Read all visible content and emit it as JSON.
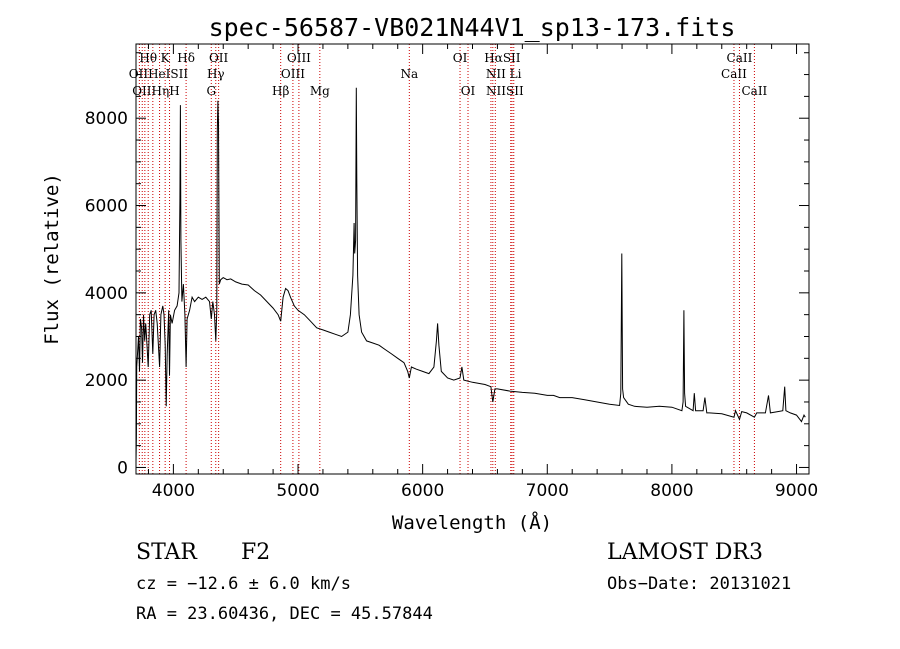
{
  "chart_data": {
    "type": "line",
    "title": "spec-56587-VB021N44V1_sp13-173.fits",
    "xlabel": "Wavelength (Å)",
    "ylabel": "Flux (relative)",
    "xlim": [
      3700,
      9100
    ],
    "ylim": [
      -150,
      9700
    ],
    "xticks": [
      4000,
      5000,
      6000,
      7000,
      8000,
      9000
    ],
    "yticks": [
      0,
      2000,
      4000,
      6000,
      8000
    ],
    "x_tick_labels": [
      "4000",
      "5000",
      "6000",
      "7000",
      "8000",
      "9000"
    ],
    "y_tick_labels": [
      "0",
      "2000",
      "4000",
      "6000",
      "8000"
    ],
    "line_color": "#000000",
    "marker_color": "#cc0000",
    "line_markers": [
      3727,
      3750,
      3771,
      3798,
      3835,
      3889,
      3934,
      3969,
      4102,
      4304,
      4340,
      4363,
      4861,
      4959,
      5007,
      5175,
      5893,
      6300,
      6364,
      6548,
      6563,
      6583,
      6707,
      6717,
      6731,
      8498,
      8542,
      8662
    ],
    "line_labels": [
      {
        "text": "Hθ",
        "wl": 3798,
        "row": 0
      },
      {
        "text": "K",
        "wl": 3934,
        "row": 0
      },
      {
        "text": "Hδ",
        "wl": 4102,
        "row": 0
      },
      {
        "text": "OII",
        "wl": 4363,
        "row": 0
      },
      {
        "text": "OIII",
        "wl": 5007,
        "row": 0
      },
      {
        "text": "OI",
        "wl": 6300,
        "row": 0
      },
      {
        "text": "HαSII",
        "wl": 6640,
        "row": 0
      },
      {
        "text": "CaII",
        "wl": 8542,
        "row": 0
      },
      {
        "text": "OIIHeISII",
        "wl": 3880,
        "row": 1
      },
      {
        "text": "Hγ",
        "wl": 4340,
        "row": 1
      },
      {
        "text": "OIII",
        "wl": 4959,
        "row": 1
      },
      {
        "text": "Na",
        "wl": 5893,
        "row": 1
      },
      {
        "text": "NII Li",
        "wl": 6650,
        "row": 1
      },
      {
        "text": "CaII",
        "wl": 8498,
        "row": 1
      },
      {
        "text": "OIIHηH",
        "wl": 3860,
        "row": 2
      },
      {
        "text": "G",
        "wl": 4304,
        "row": 2
      },
      {
        "text": "Hβ",
        "wl": 4861,
        "row": 2
      },
      {
        "text": "Mg",
        "wl": 5175,
        "row": 2
      },
      {
        "text": "OI",
        "wl": 6364,
        "row": 2
      },
      {
        "text": "NIISII",
        "wl": 6660,
        "row": 2
      },
      {
        "text": "CaII",
        "wl": 8662,
        "row": 2
      }
    ],
    "spectrum": [
      [
        3700,
        100
      ],
      [
        3703,
        700
      ],
      [
        3706,
        2300
      ],
      [
        3712,
        2600
      ],
      [
        3720,
        3000
      ],
      [
        3728,
        2200
      ],
      [
        3735,
        3400
      ],
      [
        3745,
        3200
      ],
      [
        3752,
        2400
      ],
      [
        3760,
        3500
      ],
      [
        3770,
        2900
      ],
      [
        3778,
        3300
      ],
      [
        3788,
        2800
      ],
      [
        3798,
        2300
      ],
      [
        3810,
        3500
      ],
      [
        3822,
        3600
      ],
      [
        3835,
        2600
      ],
      [
        3845,
        3500
      ],
      [
        3858,
        3600
      ],
      [
        3870,
        3300
      ],
      [
        3889,
        2300
      ],
      [
        3900,
        3500
      ],
      [
        3915,
        3700
      ],
      [
        3925,
        3500
      ],
      [
        3934,
        2800
      ],
      [
        3942,
        1400
      ],
      [
        3950,
        2600
      ],
      [
        3962,
        3600
      ],
      [
        3969,
        2100
      ],
      [
        3976,
        3500
      ],
      [
        3990,
        3300
      ],
      [
        4010,
        3600
      ],
      [
        4030,
        3700
      ],
      [
        4045,
        4000
      ],
      [
        4052,
        6100
      ],
      [
        4056,
        8300
      ],
      [
        4060,
        5200
      ],
      [
        4068,
        3800
      ],
      [
        4080,
        4200
      ],
      [
        4092,
        3500
      ],
      [
        4102,
        2300
      ],
      [
        4110,
        3400
      ],
      [
        4130,
        3600
      ],
      [
        4150,
        3900
      ],
      [
        4170,
        3800
      ],
      [
        4200,
        3900
      ],
      [
        4230,
        3850
      ],
      [
        4260,
        3900
      ],
      [
        4290,
        3800
      ],
      [
        4304,
        3400
      ],
      [
        4316,
        3800
      ],
      [
        4330,
        3500
      ],
      [
        4340,
        2900
      ],
      [
        4348,
        3600
      ],
      [
        4352,
        7700
      ],
      [
        4357,
        8400
      ],
      [
        4362,
        7900
      ],
      [
        4368,
        4200
      ],
      [
        4380,
        4300
      ],
      [
        4400,
        4350
      ],
      [
        4430,
        4300
      ],
      [
        4460,
        4320
      ],
      [
        4500,
        4250
      ],
      [
        4550,
        4200
      ],
      [
        4600,
        4180
      ],
      [
        4650,
        4050
      ],
      [
        4700,
        3950
      ],
      [
        4750,
        3800
      ],
      [
        4800,
        3650
      ],
      [
        4840,
        3500
      ],
      [
        4861,
        3350
      ],
      [
        4880,
        3900
      ],
      [
        4900,
        4100
      ],
      [
        4920,
        4050
      ],
      [
        4940,
        3900
      ],
      [
        4970,
        3700
      ],
      [
        5000,
        3600
      ],
      [
        5050,
        3500
      ],
      [
        5100,
        3350
      ],
      [
        5150,
        3200
      ],
      [
        5200,
        3150
      ],
      [
        5250,
        3100
      ],
      [
        5300,
        3050
      ],
      [
        5350,
        3000
      ],
      [
        5400,
        3100
      ],
      [
        5420,
        3500
      ],
      [
        5440,
        4400
      ],
      [
        5450,
        5600
      ],
      [
        5455,
        4900
      ],
      [
        5462,
        5200
      ],
      [
        5468,
        8700
      ],
      [
        5472,
        6600
      ],
      [
        5478,
        4400
      ],
      [
        5490,
        3500
      ],
      [
        5510,
        3100
      ],
      [
        5550,
        2900
      ],
      [
        5600,
        2850
      ],
      [
        5650,
        2800
      ],
      [
        5700,
        2700
      ],
      [
        5750,
        2600
      ],
      [
        5800,
        2500
      ],
      [
        5850,
        2400
      ],
      [
        5880,
        2200
      ],
      [
        5893,
        2050
      ],
      [
        5910,
        2300
      ],
      [
        5950,
        2250
      ],
      [
        6000,
        2200
      ],
      [
        6050,
        2150
      ],
      [
        6090,
        2300
      ],
      [
        6110,
        2900
      ],
      [
        6120,
        3300
      ],
      [
        6130,
        2800
      ],
      [
        6150,
        2200
      ],
      [
        6200,
        2050
      ],
      [
        6250,
        2000
      ],
      [
        6300,
        2050
      ],
      [
        6315,
        2300
      ],
      [
        6330,
        2000
      ],
      [
        6400,
        1950
      ],
      [
        6500,
        1900
      ],
      [
        6548,
        1850
      ],
      [
        6563,
        1500
      ],
      [
        6580,
        1800
      ],
      [
        6600,
        1800
      ],
      [
        6700,
        1750
      ],
      [
        6800,
        1720
      ],
      [
        6900,
        1700
      ],
      [
        7000,
        1650
      ],
      [
        7050,
        1650
      ],
      [
        7100,
        1600
      ],
      [
        7200,
        1600
      ],
      [
        7300,
        1550
      ],
      [
        7400,
        1500
      ],
      [
        7500,
        1450
      ],
      [
        7580,
        1420
      ],
      [
        7590,
        1700
      ],
      [
        7598,
        4900
      ],
      [
        7604,
        1800
      ],
      [
        7612,
        1600
      ],
      [
        7650,
        1450
      ],
      [
        7700,
        1400
      ],
      [
        7800,
        1380
      ],
      [
        7900,
        1400
      ],
      [
        8000,
        1380
      ],
      [
        8080,
        1300
      ],
      [
        8090,
        1500
      ],
      [
        8096,
        3600
      ],
      [
        8102,
        1700
      ],
      [
        8110,
        1400
      ],
      [
        8170,
        1300
      ],
      [
        8180,
        1700
      ],
      [
        8190,
        1300
      ],
      [
        8250,
        1300
      ],
      [
        8265,
        1600
      ],
      [
        8280,
        1250
      ],
      [
        8300,
        1250
      ],
      [
        8400,
        1230
      ],
      [
        8498,
        1150
      ],
      [
        8510,
        1300
      ],
      [
        8542,
        1100
      ],
      [
        8560,
        1280
      ],
      [
        8600,
        1250
      ],
      [
        8662,
        1150
      ],
      [
        8680,
        1250
      ],
      [
        8750,
        1250
      ],
      [
        8775,
        1650
      ],
      [
        8790,
        1250
      ],
      [
        8850,
        1280
      ],
      [
        8890,
        1300
      ],
      [
        8905,
        1850
      ],
      [
        8915,
        1300
      ],
      [
        8950,
        1250
      ],
      [
        9000,
        1200
      ],
      [
        9040,
        1050
      ],
      [
        9060,
        1200
      ],
      [
        9070,
        1150
      ]
    ]
  },
  "footer": {
    "object_type": "STAR",
    "subclass": "F2",
    "survey": "LAMOST DR3",
    "cz": "cz = −12.6 ± 6.0 km/s",
    "obs_date": "Obs−Date: 20131021",
    "coords": "RA =  23.60436, DEC =  45.57844"
  }
}
